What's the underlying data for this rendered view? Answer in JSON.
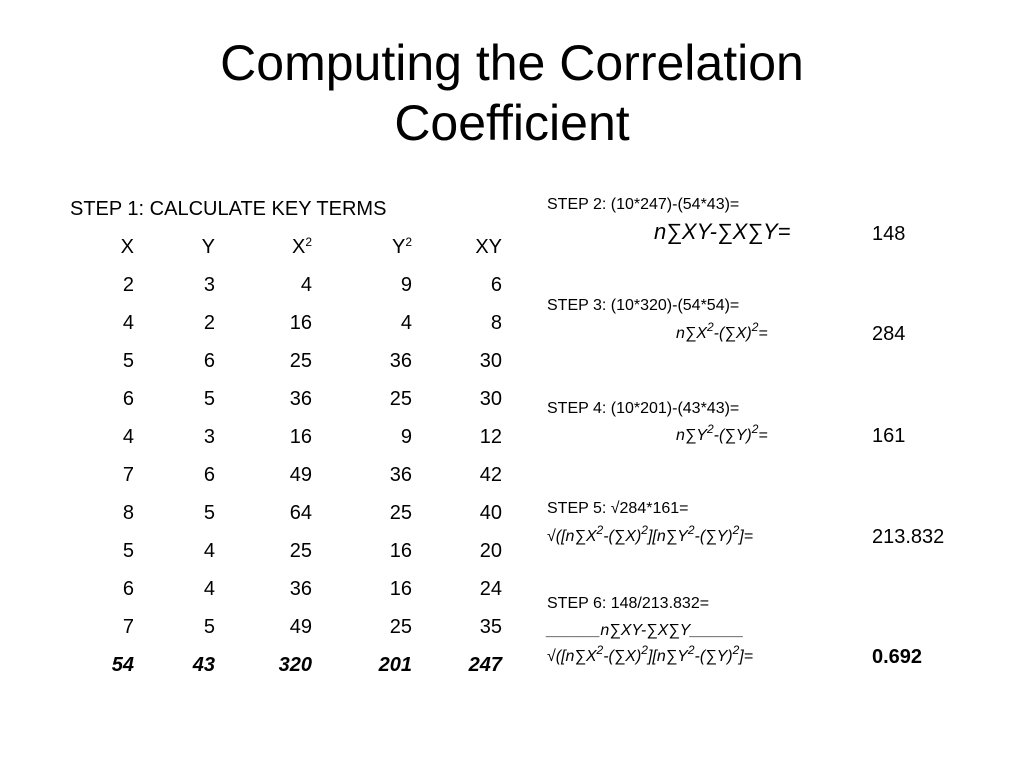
{
  "title": {
    "line1": "Computing the Correlation",
    "line2": "Coefficient"
  },
  "step1": {
    "heading": "STEP 1: CALCULATE KEY TERMS",
    "columns": [
      "X",
      "Y",
      "X",
      "Y",
      "XY"
    ],
    "column_superscripts": [
      "",
      "",
      "2",
      "2",
      ""
    ],
    "rows": [
      [
        "2",
        "3",
        "4",
        "9",
        "6"
      ],
      [
        "4",
        "2",
        "16",
        "4",
        "8"
      ],
      [
        "5",
        "6",
        "25",
        "36",
        "30"
      ],
      [
        "6",
        "5",
        "36",
        "25",
        "30"
      ],
      [
        "4",
        "3",
        "16",
        "9",
        "12"
      ],
      [
        "7",
        "6",
        "49",
        "36",
        "42"
      ],
      [
        "8",
        "5",
        "64",
        "25",
        "40"
      ],
      [
        "5",
        "4",
        "25",
        "16",
        "20"
      ],
      [
        "6",
        "4",
        "36",
        "16",
        "24"
      ],
      [
        "7",
        "5",
        "49",
        "25",
        "35"
      ]
    ],
    "totals": [
      "54",
      "43",
      "320",
      "201",
      "247"
    ]
  },
  "step2": {
    "label": "STEP 2: (10*247)-(54*43)=",
    "formula": "n∑XY-∑X∑Y=",
    "result": "148"
  },
  "step3": {
    "label": "STEP 3: (10*320)-(54*54)=",
    "formula_a": "n∑X",
    "formula_b": "-(∑X)",
    "formula_c": "=",
    "result": "284"
  },
  "step4": {
    "label": "STEP 4: (10*201)-(43*43)=",
    "formula_a": "n∑Y",
    "formula_b": "-(∑Y)",
    "formula_c": "=",
    "result": "161"
  },
  "step5": {
    "label": "STEP 5: √284*161=",
    "formula_a": "√([n∑X",
    "formula_b": "-(∑X)",
    "formula_c": "][n∑Y",
    "formula_d": "-(∑Y)",
    "formula_e": "]=",
    "result": "213.832"
  },
  "step6": {
    "label": "STEP 6: 148/213.832=",
    "numerator": "______n∑XY-∑X∑Y______",
    "formula_a": "√([n∑X",
    "formula_b": "-(∑X)",
    "formula_c": "][n∑Y",
    "formula_d": "-(∑Y)",
    "formula_e": "]=",
    "result": "0.692"
  },
  "superscript_two": "2"
}
